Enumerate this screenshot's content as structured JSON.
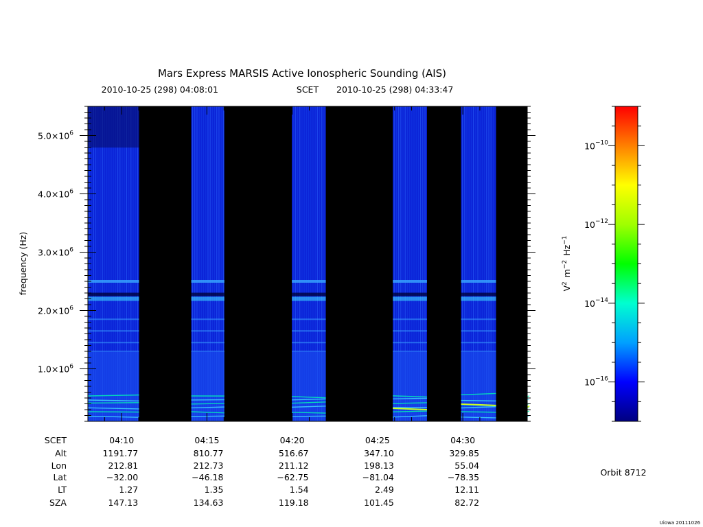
{
  "chart_data": {
    "type": "heatmap",
    "title": "Mars Express MARSIS Active Ionospheric Sounding (AIS)",
    "time_range": {
      "start": "2010-10-25 (298) 04:08:01",
      "label": "SCET",
      "end": "2010-10-25 (298) 04:33:47"
    },
    "x_axis": {
      "ticks": [
        {
          "label": "04:10",
          "minute": 10
        },
        {
          "label": "04:15",
          "minute": 15
        },
        {
          "label": "04:20",
          "minute": 20
        },
        {
          "label": "04:25",
          "minute": 25
        },
        {
          "label": "04:30",
          "minute": 30
        }
      ],
      "range_minutes": [
        8.02,
        33.78
      ]
    },
    "y_axis": {
      "label": "frequency (Hz)",
      "range_mhz": [
        0.1,
        5.5
      ],
      "ticks": [
        {
          "mant": "1.0×10",
          "exp": "6",
          "mhz": 1.0
        },
        {
          "mant": "2.0×10",
          "exp": "6",
          "mhz": 2.0
        },
        {
          "mant": "3.0×10",
          "exp": "6",
          "mhz": 3.0
        },
        {
          "mant": "4.0×10",
          "exp": "6",
          "mhz": 4.0
        },
        {
          "mant": "5.0×10",
          "exp": "6",
          "mhz": 5.0
        }
      ]
    },
    "data_segments_minutes": [
      [
        8.02,
        11.02
      ],
      [
        14.08,
        16.02
      ],
      [
        19.98,
        21.97
      ],
      [
        25.9,
        27.9
      ],
      [
        29.9,
        31.95
      ],
      [
        33.9,
        33.78
      ]
    ],
    "colorbar": {
      "label_parts": {
        "v": "V",
        "v_exp": "2",
        "m": "m",
        "m_exp": "−2",
        "hz": "Hz",
        "hz_exp": "−1"
      },
      "log_range": [
        -17,
        -9
      ],
      "ticks": [
        {
          "base": "10",
          "exp": "−10",
          "log": -10
        },
        {
          "base": "10",
          "exp": "−12",
          "log": -12
        },
        {
          "base": "10",
          "exp": "−14",
          "log": -14
        },
        {
          "base": "10",
          "exp": "−16",
          "log": -16
        }
      ],
      "colors": [
        "#000080",
        "#0000ff",
        "#00a0ff",
        "#00ffd0",
        "#00ff00",
        "#a0ff00",
        "#ffff00",
        "#ff8000",
        "#ff0000"
      ]
    },
    "ephemeris": {
      "row_labels": [
        "SCET",
        "Alt",
        "Lon",
        "Lat",
        "LT",
        "SZA"
      ],
      "columns": [
        {
          "scet": "04:10",
          "alt": "1191.77",
          "lon": "212.81",
          "lat": "−32.00",
          "lt": "1.27",
          "sza": "147.13"
        },
        {
          "scet": "04:15",
          "alt": "810.77",
          "lon": "212.73",
          "lat": "−46.18",
          "lt": "1.35",
          "sza": "134.63"
        },
        {
          "scet": "04:20",
          "alt": "516.67",
          "lon": "211.12",
          "lat": "−62.75",
          "lt": "1.54",
          "sza": "119.18"
        },
        {
          "scet": "04:25",
          "alt": "347.10",
          "lon": "198.13",
          "lat": "−81.04",
          "lt": "2.49",
          "sza": "101.45"
        },
        {
          "scet": "04:30",
          "alt": "329.85",
          "lon": "55.04",
          "lat": "−78.35",
          "lt": "12.11",
          "sza": "82.72"
        }
      ]
    },
    "orbit_label": "Orbit 8712",
    "credit": "Uiowa 20111026",
    "colors": {
      "background": "#ffffff",
      "data_gap": "#000000",
      "plasma_base": "#0b24d8"
    }
  }
}
